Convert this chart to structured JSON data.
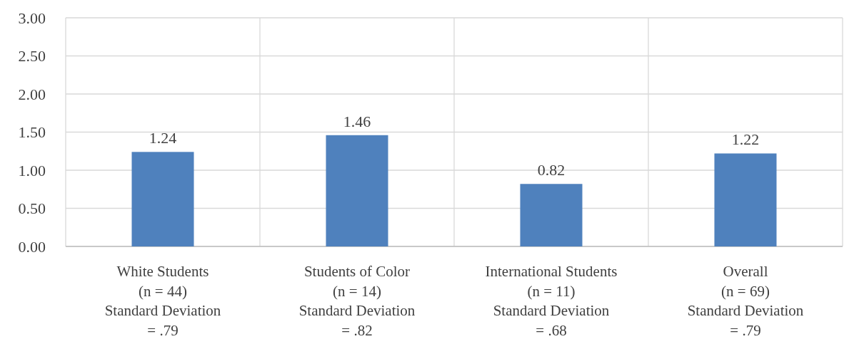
{
  "chart_data": {
    "type": "bar",
    "categories": [
      "White Students\n(n = 44)\nStandard Deviation\n= .79",
      "Students of Color\n(n = 14)\nStandard Deviation\n= .82",
      "International Students\n(n = 11)\nStandard Deviation\n= .68",
      "Overall\n(n = 69)\nStandard Deviation\n= .79"
    ],
    "values": [
      1.24,
      1.46,
      0.82,
      1.22
    ],
    "value_labels": [
      "1.24",
      "1.46",
      "0.82",
      "1.22"
    ],
    "color": "#4f81bd",
    "ylim": [
      0,
      3
    ],
    "yticks": [
      {
        "value": 0,
        "label": "0.00"
      },
      {
        "value": 0.5,
        "label": "0.50"
      },
      {
        "value": 1,
        "label": "1.00"
      },
      {
        "value": 1.5,
        "label": "1.50"
      },
      {
        "value": 2,
        "label": "2.00"
      },
      {
        "value": 2.5,
        "label": "2.50"
      },
      {
        "value": 3,
        "label": "3.00"
      }
    ],
    "grid": true
  }
}
